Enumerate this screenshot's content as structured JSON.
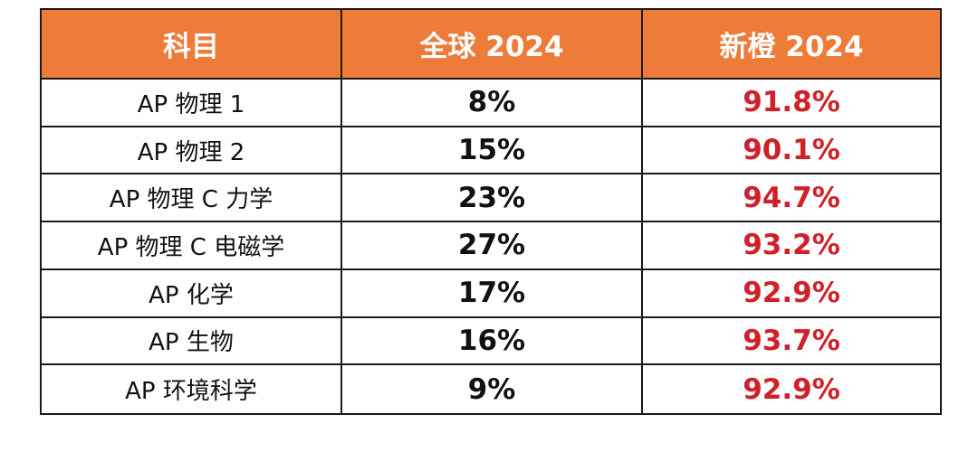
{
  "colors": {
    "header_bg": "#ee7b37",
    "header_text": "#ffffff",
    "xincheng_value": "#d0202a",
    "body_text": "#111111",
    "border": "#1a1a1a"
  },
  "chart_data": {
    "type": "table",
    "columns": [
      "科目",
      "全球 2024",
      "新橙 2024"
    ],
    "rows": [
      {
        "subject": "AP 物理 1",
        "global": "8%",
        "xincheng": "91.8%"
      },
      {
        "subject": "AP 物理 2",
        "global": "15%",
        "xincheng": "90.1%"
      },
      {
        "subject": "AP 物理 C 力学",
        "global": "23%",
        "xincheng": "94.7%"
      },
      {
        "subject": "AP 物理 C 电磁学",
        "global": "27%",
        "xincheng": "93.2%"
      },
      {
        "subject": "AP 化学",
        "global": "17%",
        "xincheng": "92.9%"
      },
      {
        "subject": "AP 生物",
        "global": "16%",
        "xincheng": "93.7%"
      },
      {
        "subject": "AP 环境科学",
        "global": "9%",
        "xincheng": "92.9%"
      }
    ]
  }
}
